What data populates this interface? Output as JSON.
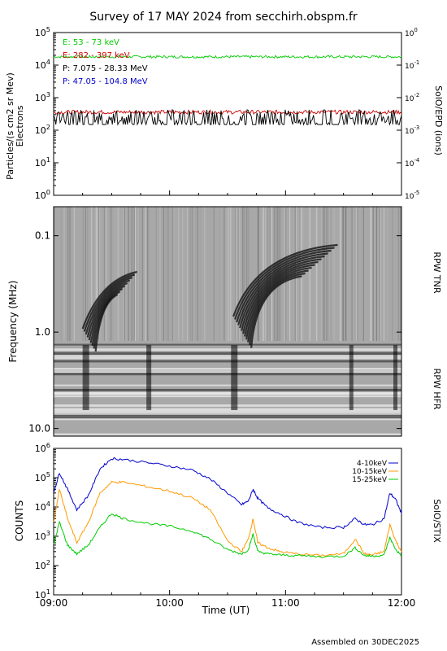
{
  "title": "Survey of 17 MAY 2024 from secchirh.obspm.fr",
  "footer": "Assembled on 30DEC2025",
  "chart_data": [
    {
      "type": "line",
      "panel": "particles",
      "ylabel": "Particles/(s cm2 sr Mev)",
      "ylabel2": "Electrons",
      "right_label": "SolO/EPD (ions)",
      "yscale": "log",
      "ylim": [
        1,
        100000
      ],
      "y_ticks": [
        {
          "base": "10",
          "exp": "0",
          "value": 1
        },
        {
          "base": "10",
          "exp": "1",
          "value": 10
        },
        {
          "base": "10",
          "exp": "2",
          "value": 100
        },
        {
          "base": "10",
          "exp": "3",
          "value": 1000
        },
        {
          "base": "10",
          "exp": "4",
          "value": 10000
        },
        {
          "base": "10",
          "exp": "5",
          "value": 100000
        }
      ],
      "y2lim": [
        1e-05,
        1
      ],
      "y2_ticks": [
        {
          "base": "10",
          "exp": "-5",
          "value": 1e-05
        },
        {
          "base": "10",
          "exp": "-4",
          "value": 0.0001
        },
        {
          "base": "10",
          "exp": "-3",
          "value": 0.001
        },
        {
          "base": "10",
          "exp": "-2",
          "value": 0.01
        },
        {
          "base": "10",
          "exp": "-1",
          "value": 0.1
        },
        {
          "base": "10",
          "exp": "0",
          "value": 1
        }
      ],
      "xlim": [
        0,
        3
      ],
      "series": [
        {
          "name": "E: 53 - 73 keV",
          "color": "#00cc00",
          "level": 18000,
          "noise": 0.04
        },
        {
          "name": "E: 282 - 397 keV",
          "color": "#cc0000",
          "level": 360,
          "noise": 0.06
        },
        {
          "name": "P: 7.075 - 28.33 MeV",
          "color": "#000000",
          "level": 260,
          "noise": 0.22
        },
        {
          "name": "P: 47.05 - 104.8 MeV",
          "color": "#0000cc",
          "level": 0,
          "noise": 0
        }
      ]
    },
    {
      "type": "heatmap",
      "panel": "radio",
      "ylabel": "Frequency (MHz)",
      "right_labels": [
        "RPW TNR",
        "RPW HFR"
      ],
      "yscale": "log",
      "ylim_inverted": [
        0.05,
        12
      ],
      "y_ticks": [
        {
          "label": "0.1",
          "value": 0.1
        },
        {
          "label": "1.0",
          "value": 1.0
        },
        {
          "label": "10.0",
          "value": 10.0
        }
      ],
      "xlim": [
        0,
        3
      ]
    },
    {
      "type": "line",
      "panel": "xray",
      "ylabel": "COUNTS",
      "right_label": "SolO/STIX",
      "yscale": "log",
      "ylim": [
        10,
        1000000
      ],
      "y_ticks": [
        {
          "base": "10",
          "exp": "1",
          "value": 10
        },
        {
          "base": "10",
          "exp": "2",
          "value": 100
        },
        {
          "base": "10",
          "exp": "3",
          "value": 1000
        },
        {
          "base": "10",
          "exp": "4",
          "value": 10000
        },
        {
          "base": "10",
          "exp": "5",
          "value": 100000
        },
        {
          "base": "10",
          "exp": "6",
          "value": 1000000
        }
      ],
      "xlabel": "Time (UT)",
      "x_ticks": [
        {
          "label": "09:00",
          "value": 0
        },
        {
          "label": "10:00",
          "value": 1
        },
        {
          "label": "11:00",
          "value": 2
        },
        {
          "label": "12:00",
          "value": 3
        }
      ],
      "xlim": [
        0,
        3
      ],
      "series": [
        {
          "name": "4-10keV",
          "color": "#0000cc",
          "points": [
            [
              0,
              30000
            ],
            [
              0.05,
              150000
            ],
            [
              0.12,
              40000
            ],
            [
              0.2,
              8000
            ],
            [
              0.3,
              25000
            ],
            [
              0.4,
              200000
            ],
            [
              0.5,
              450000
            ],
            [
              0.6,
              420000
            ],
            [
              0.8,
              330000
            ],
            [
              1.0,
              250000
            ],
            [
              1.2,
              180000
            ],
            [
              1.35,
              90000
            ],
            [
              1.5,
              30000
            ],
            [
              1.62,
              12000
            ],
            [
              1.68,
              16000
            ],
            [
              1.72,
              40000
            ],
            [
              1.76,
              20000
            ],
            [
              1.85,
              9000
            ],
            [
              1.95,
              6000
            ],
            [
              2.1,
              3000
            ],
            [
              2.3,
              2000
            ],
            [
              2.5,
              2000
            ],
            [
              2.6,
              4000
            ],
            [
              2.68,
              2500
            ],
            [
              2.75,
              2500
            ],
            [
              2.85,
              4000
            ],
            [
              2.9,
              30000
            ],
            [
              2.95,
              18000
            ],
            [
              3.0,
              6000
            ]
          ]
        },
        {
          "name": "10-15keV",
          "color": "#ff9900",
          "points": [
            [
              0,
              3000
            ],
            [
              0.05,
              40000
            ],
            [
              0.12,
              4000
            ],
            [
              0.2,
              600
            ],
            [
              0.3,
              3000
            ],
            [
              0.4,
              30000
            ],
            [
              0.5,
              70000
            ],
            [
              0.6,
              70000
            ],
            [
              0.8,
              50000
            ],
            [
              1.0,
              35000
            ],
            [
              1.2,
              20000
            ],
            [
              1.35,
              8000
            ],
            [
              1.5,
              700
            ],
            [
              1.62,
              300
            ],
            [
              1.68,
              800
            ],
            [
              1.72,
              4000
            ],
            [
              1.76,
              600
            ],
            [
              1.85,
              400
            ],
            [
              1.95,
              300
            ],
            [
              2.1,
              250
            ],
            [
              2.3,
              220
            ],
            [
              2.5,
              250
            ],
            [
              2.6,
              800
            ],
            [
              2.68,
              250
            ],
            [
              2.75,
              230
            ],
            [
              2.85,
              300
            ],
            [
              2.9,
              2500
            ],
            [
              2.95,
              700
            ],
            [
              3.0,
              300
            ]
          ]
        },
        {
          "name": "15-25keV",
          "color": "#00cc00",
          "points": [
            [
              0,
              500
            ],
            [
              0.05,
              3000
            ],
            [
              0.12,
              500
            ],
            [
              0.2,
              250
            ],
            [
              0.3,
              500
            ],
            [
              0.4,
              2000
            ],
            [
              0.5,
              6000
            ],
            [
              0.6,
              4000
            ],
            [
              0.8,
              2800
            ],
            [
              1.0,
              2200
            ],
            [
              1.2,
              1500
            ],
            [
              1.35,
              800
            ],
            [
              1.5,
              350
            ],
            [
              1.62,
              250
            ],
            [
              1.68,
              350
            ],
            [
              1.72,
              1200
            ],
            [
              1.76,
              300
            ],
            [
              1.85,
              250
            ],
            [
              1.95,
              230
            ],
            [
              2.1,
              220
            ],
            [
              2.3,
              200
            ],
            [
              2.5,
              210
            ],
            [
              2.6,
              400
            ],
            [
              2.68,
              220
            ],
            [
              2.75,
              210
            ],
            [
              2.85,
              230
            ],
            [
              2.9,
              900
            ],
            [
              2.95,
              350
            ],
            [
              3.0,
              220
            ]
          ]
        }
      ]
    }
  ]
}
